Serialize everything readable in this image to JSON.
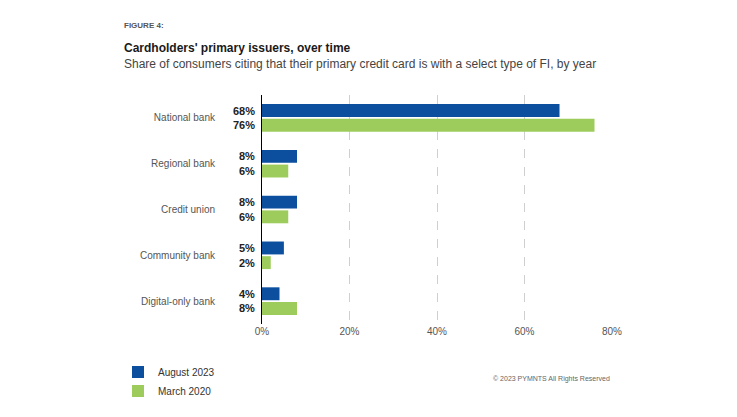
{
  "chart_data": {
    "type": "bar",
    "orientation": "horizontal",
    "figure_label": "FIGURE 4:",
    "title": "Cardholders' primary issuers, over time",
    "subtitle": "Share of consumers citing that their primary credit card is with a select type of FI, by year",
    "note": "© 2023 PYMNTS All Rights Reserved",
    "categories": [
      "National bank",
      "Regional bank",
      "Credit union",
      "Community bank",
      "Digital-only bank"
    ],
    "series": [
      {
        "name": "August 2023",
        "color": "#0b4f9e",
        "values": [
          68,
          8,
          8,
          5,
          4
        ],
        "value_labels": [
          "68%",
          "8%",
          "8%",
          "5%",
          "4%"
        ]
      },
      {
        "name": "March 2020",
        "color": "#9dcc5c",
        "values": [
          76,
          6,
          6,
          2,
          8
        ],
        "value_labels": [
          "76%",
          "6%",
          "6%",
          "2%",
          "8%"
        ]
      }
    ],
    "xlim": [
      0,
      80
    ],
    "xticks": [
      {
        "value": 0,
        "label": "0%"
      },
      {
        "value": 20,
        "label": "20%"
      },
      {
        "value": 40,
        "label": "40%"
      },
      {
        "value": 60,
        "label": "60%"
      },
      {
        "value": 80,
        "label": "80%"
      }
    ],
    "grid": true,
    "data_labels": true,
    "legend": "bottom-left"
  }
}
